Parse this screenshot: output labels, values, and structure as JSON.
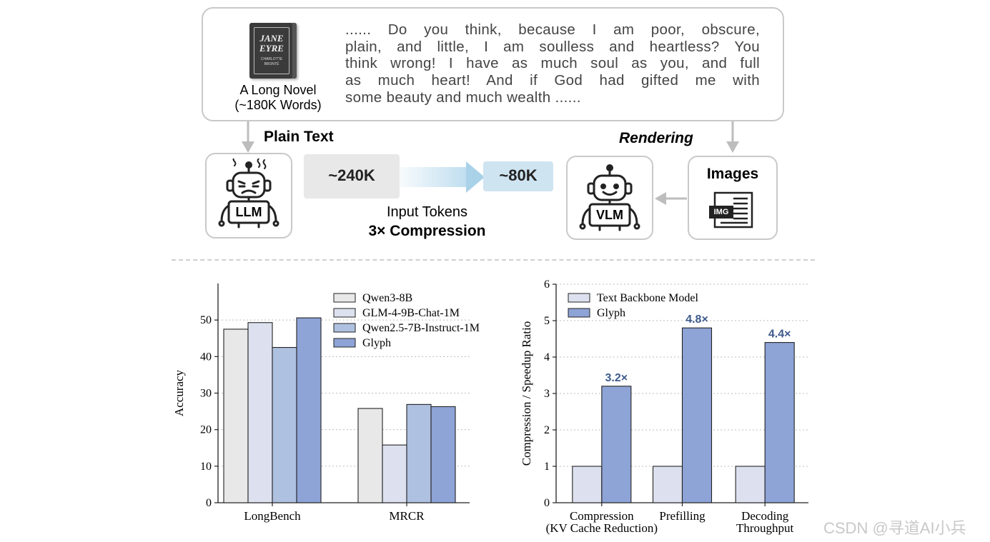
{
  "top": {
    "novel_label_line1": "A Long Novel",
    "novel_label_line2": "(~180K Words)",
    "book_title_1": "JANE",
    "book_title_2": "EYRE",
    "book_author_1": "CHARLOTTE",
    "book_author_2": "BRONTË",
    "quote_lines": [
      "...... Do you think, because I am poor, obscure,",
      "plain, and little, I am soulless and heartless? You",
      "think wrong! I have as much soul as you, and full",
      "as much heart! And if God had gifted me with",
      "some beauty and much wealth ......"
    ],
    "plain_text_label": "Plain Text",
    "rendering_label": "Rendering",
    "llm_label": "LLM",
    "vlm_label": "VLM",
    "images_label": "Images",
    "img_icon_label": "IMG",
    "tokens_from": "~240K",
    "tokens_to": "~80K",
    "input_tokens_label": "Input Tokens",
    "compression_label": "3× Compression",
    "colors": {
      "border": "#c9c9c9",
      "from_pill": "#e8e8e8",
      "to_pill": "#cfe4f1",
      "arrow": "#9fcbe3"
    }
  },
  "watermark": "CSDN @寻道AI小兵",
  "chart_data": [
    {
      "type": "bar",
      "ylabel": "Accuracy",
      "categories": [
        "LongBench",
        "MRCR"
      ],
      "ylim": [
        0,
        60
      ],
      "yticks": [
        "0",
        "10",
        "20",
        "30",
        "40",
        "50"
      ],
      "grid": true,
      "legend_position": "top-right",
      "series": [
        {
          "name": "Qwen3-8B",
          "values": [
            47.5,
            25.8
          ],
          "color": "#e8e8e8"
        },
        {
          "name": "GLM-4-9B-Chat-1M",
          "values": [
            49.3,
            15.8
          ],
          "color": "#dde1ef"
        },
        {
          "name": "Qwen2.5-7B-Instruct-1M",
          "values": [
            42.5,
            26.9
          ],
          "color": "#afc1e0"
        },
        {
          "name": "Glyph",
          "values": [
            50.6,
            26.3
          ],
          "color": "#8ea3d6"
        }
      ]
    },
    {
      "type": "bar",
      "ylabel": "Compression / Speedup Ratio",
      "categories": [
        [
          "Compression",
          "(KV Cache Reduction)"
        ],
        [
          "Prefilling"
        ],
        [
          "Decoding",
          "Throughput"
        ]
      ],
      "ylim": [
        0,
        6
      ],
      "yticks": [
        "0",
        "1",
        "2",
        "3",
        "4",
        "5",
        "6"
      ],
      "grid": true,
      "legend_position": "top-left",
      "series": [
        {
          "name": "Text Backbone Model",
          "values": [
            1,
            1,
            1
          ],
          "color": "#dde1ef"
        },
        {
          "name": "Glyph",
          "values": [
            3.2,
            4.8,
            4.4
          ],
          "color": "#8ea3d6"
        }
      ],
      "data_labels": [
        "3.2×",
        "4.8×",
        "4.4×"
      ],
      "data_label_color": "#3d5a8c"
    }
  ]
}
